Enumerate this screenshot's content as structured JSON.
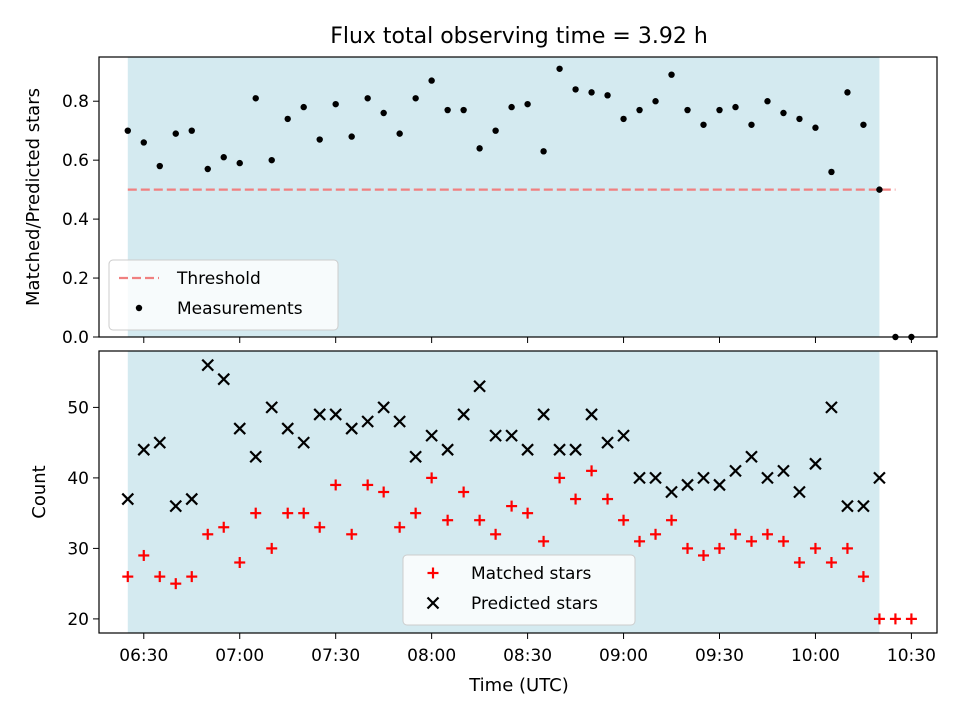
{
  "title": "Flux total observing time = 3.92 h",
  "colors": {
    "shade": "#d4eaf0",
    "threshold": "#f08080",
    "measurement": "#000000",
    "matched": "#ff0000",
    "predicted": "#000000"
  },
  "x_axis": {
    "label": "Time (UTC)",
    "range": [
      "06:16",
      "10:38"
    ],
    "ticks": [
      "06:30",
      "07:00",
      "07:30",
      "08:00",
      "08:30",
      "09:00",
      "09:30",
      "10:00",
      "10:30"
    ]
  },
  "chart_data": [
    {
      "type": "scatter",
      "ylabel": "Matched/Predicted stars",
      "ylim": [
        0.0,
        0.95
      ],
      "yticks": [
        "0.0",
        "0.2",
        "0.4",
        "0.6",
        "0.8"
      ],
      "shaded_span": [
        "06:25",
        "10:20"
      ],
      "threshold": {
        "name": "Threshold",
        "value": 0.5,
        "x": [
          "06:25",
          "10:25"
        ]
      },
      "legend_position": "lower-left",
      "series": [
        {
          "name": "Measurements",
          "marker": "dot",
          "x": [
            "06:25",
            "06:30",
            "06:35",
            "06:40",
            "06:45",
            "06:50",
            "06:55",
            "07:00",
            "07:05",
            "07:10",
            "07:15",
            "07:20",
            "07:25",
            "07:30",
            "07:35",
            "07:40",
            "07:45",
            "07:50",
            "07:55",
            "08:00",
            "08:05",
            "08:10",
            "08:15",
            "08:20",
            "08:25",
            "08:30",
            "08:35",
            "08:40",
            "08:45",
            "08:50",
            "08:55",
            "09:00",
            "09:05",
            "09:10",
            "09:15",
            "09:20",
            "09:25",
            "09:30",
            "09:35",
            "09:40",
            "09:45",
            "09:50",
            "09:55",
            "10:00",
            "10:05",
            "10:10",
            "10:15",
            "10:20",
            "10:25",
            "10:30"
          ],
          "y": [
            0.7,
            0.66,
            0.58,
            0.69,
            0.7,
            0.57,
            0.61,
            0.59,
            0.81,
            0.6,
            0.74,
            0.78,
            0.67,
            0.79,
            0.68,
            0.81,
            0.76,
            0.69,
            0.81,
            0.87,
            0.77,
            0.77,
            0.64,
            0.7,
            0.78,
            0.79,
            0.63,
            0.91,
            0.84,
            0.83,
            0.82,
            0.74,
            0.77,
            0.8,
            0.89,
            0.77,
            0.72,
            0.77,
            0.78,
            0.72,
            0.8,
            0.76,
            0.74,
            0.71,
            0.56,
            0.83,
            0.72,
            0.5,
            0.0,
            0.0
          ]
        }
      ]
    },
    {
      "type": "scatter",
      "ylabel": "Count",
      "ylim": [
        18,
        58
      ],
      "yticks": [
        "20",
        "30",
        "40",
        "50"
      ],
      "shaded_span": [
        "06:25",
        "10:20"
      ],
      "legend_position": "lower-center",
      "series": [
        {
          "name": "Matched stars",
          "marker": "plus",
          "x": [
            "06:25",
            "06:30",
            "06:35",
            "06:40",
            "06:45",
            "06:50",
            "06:55",
            "07:00",
            "07:05",
            "07:10",
            "07:15",
            "07:20",
            "07:25",
            "07:30",
            "07:35",
            "07:40",
            "07:45",
            "07:50",
            "07:55",
            "08:00",
            "08:05",
            "08:10",
            "08:15",
            "08:20",
            "08:25",
            "08:30",
            "08:35",
            "08:40",
            "08:45",
            "08:50",
            "08:55",
            "09:00",
            "09:05",
            "09:10",
            "09:15",
            "09:20",
            "09:25",
            "09:30",
            "09:35",
            "09:40",
            "09:45",
            "09:50",
            "09:55",
            "10:00",
            "10:05",
            "10:10",
            "10:15",
            "10:20",
            "10:25",
            "10:30"
          ],
          "y": [
            26,
            29,
            26,
            25,
            26,
            32,
            33,
            28,
            35,
            30,
            35,
            35,
            33,
            39,
            32,
            39,
            38,
            33,
            35,
            40,
            34,
            38,
            34,
            32,
            36,
            35,
            31,
            40,
            37,
            41,
            37,
            34,
            31,
            32,
            34,
            30,
            29,
            30,
            32,
            31,
            32,
            31,
            28,
            30,
            28,
            30,
            26,
            20,
            20,
            20
          ]
        },
        {
          "name": "Predicted stars",
          "marker": "x",
          "x": [
            "06:25",
            "06:30",
            "06:35",
            "06:40",
            "06:45",
            "06:50",
            "06:55",
            "07:00",
            "07:05",
            "07:10",
            "07:15",
            "07:20",
            "07:25",
            "07:30",
            "07:35",
            "07:40",
            "07:45",
            "07:50",
            "07:55",
            "08:00",
            "08:05",
            "08:10",
            "08:15",
            "08:20",
            "08:25",
            "08:30",
            "08:35",
            "08:40",
            "08:45",
            "08:50",
            "08:55",
            "09:00",
            "09:05",
            "09:10",
            "09:15",
            "09:20",
            "09:25",
            "09:30",
            "09:35",
            "09:40",
            "09:45",
            "09:50",
            "09:55",
            "10:00",
            "10:05",
            "10:10",
            "10:15",
            "10:20"
          ],
          "y": [
            37,
            44,
            45,
            36,
            37,
            56,
            54,
            47,
            43,
            50,
            47,
            45,
            49,
            49,
            47,
            48,
            50,
            48,
            43,
            46,
            44,
            49,
            53,
            46,
            46,
            44,
            49,
            44,
            44,
            49,
            45,
            46,
            40,
            40,
            38,
            39,
            40,
            39,
            41,
            43,
            40,
            41,
            38,
            42,
            50,
            36,
            36,
            40
          ]
        }
      ]
    }
  ]
}
